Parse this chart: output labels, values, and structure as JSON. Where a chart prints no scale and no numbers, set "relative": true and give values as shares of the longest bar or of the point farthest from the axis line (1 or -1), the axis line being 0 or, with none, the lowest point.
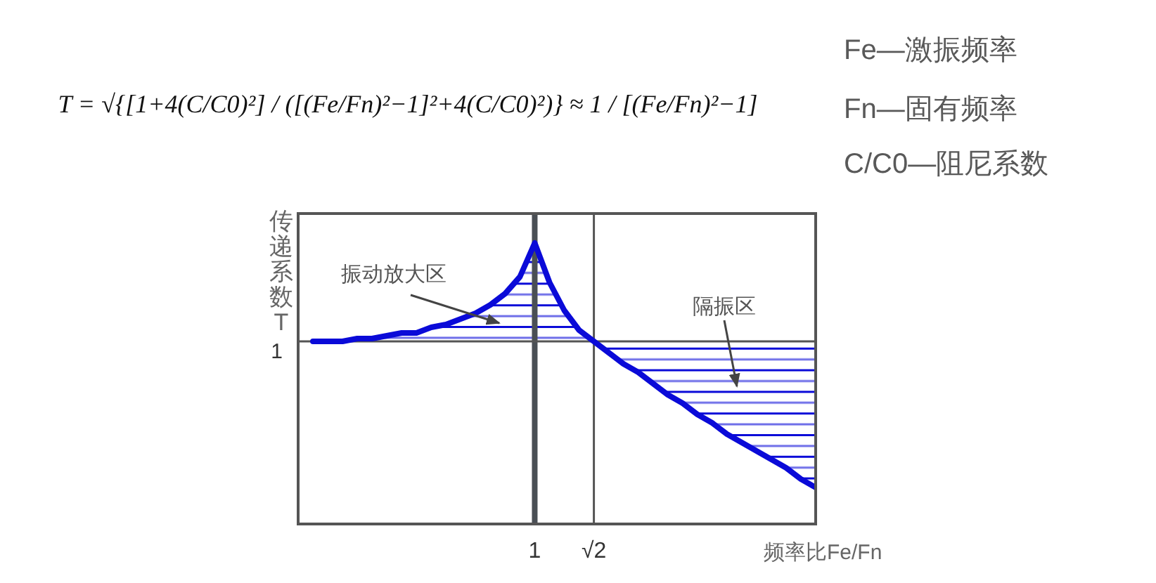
{
  "chart_data": {
    "type": "line",
    "xlabel": "频率比Fe/Fn",
    "ylabel": "传递系数T",
    "relative": true,
    "categories": [
      null,
      null,
      null,
      null,
      null,
      null,
      null,
      null,
      null,
      null,
      null,
      null,
      null,
      null,
      null,
      null,
      "1",
      null,
      null,
      null,
      "√2",
      null,
      null,
      null,
      null,
      null,
      null,
      null,
      null,
      null,
      null,
      null,
      null,
      null,
      null,
      null
    ],
    "series": [
      {
        "color": "#0a0ad8",
        "values": [
          null,
          0.65,
          0.65,
          0.65,
          0.66,
          0.66,
          0.67,
          0.68,
          0.68,
          0.7,
          0.71,
          0.73,
          0.75,
          0.78,
          0.82,
          0.88,
          1,
          0.86,
          0.76,
          0.69,
          0.65,
          0.61,
          0.57,
          0.54,
          0.5,
          0.46,
          0.43,
          0.39,
          0.36,
          0.32,
          0.29,
          0.26,
          0.23,
          0.2,
          0.16,
          0.13
        ],
        "lower": [
          null,
          0.65,
          0.65,
          0.65,
          0.65,
          0.65,
          0.65,
          0.65,
          0.65,
          0.65,
          0.65,
          0.65,
          0.65,
          0.65,
          0.65,
          0.65,
          0.65,
          0.65,
          0.65,
          0.65,
          0.65,
          0.61,
          0.57,
          0.54,
          0.5,
          0.46,
          0.43,
          0.39,
          0.36,
          0.32,
          0.29,
          0.26,
          0.23,
          0.2,
          0.16,
          0.13
        ],
        "upper": [
          null,
          0.65,
          0.65,
          0.65,
          0.66,
          0.66,
          0.67,
          0.68,
          0.68,
          0.7,
          0.71,
          0.73,
          0.75,
          0.78,
          0.82,
          0.88,
          1,
          0.86,
          0.76,
          0.69,
          0.65,
          0.65,
          0.65,
          0.65,
          0.65,
          0.65,
          0.65,
          0.65,
          0.65,
          0.65,
          0.65,
          0.65,
          0.65,
          0.65,
          0.65,
          0.65
        ]
      }
    ],
    "ref_lines": [
      {
        "axis": "x",
        "value": "1",
        "color": "#4a4f55"
      },
      {
        "axis": "x",
        "value": "√2",
        "color": "#555555"
      },
      {
        "axis": "y",
        "value": 0.65,
        "label": "1",
        "color": "#555555"
      }
    ],
    "annotations": [
      "T = √{[1+4(C/C0)²] / ([(Fe/Fn)²−1]²+4(C/C0)²)} ≈ 1 / [(Fe/Fn)²−1]",
      "Fe—激振频率",
      "Fn—固有频率",
      "C/C0—阻尼系数",
      "振动放大区",
      "隔振区"
    ]
  }
}
